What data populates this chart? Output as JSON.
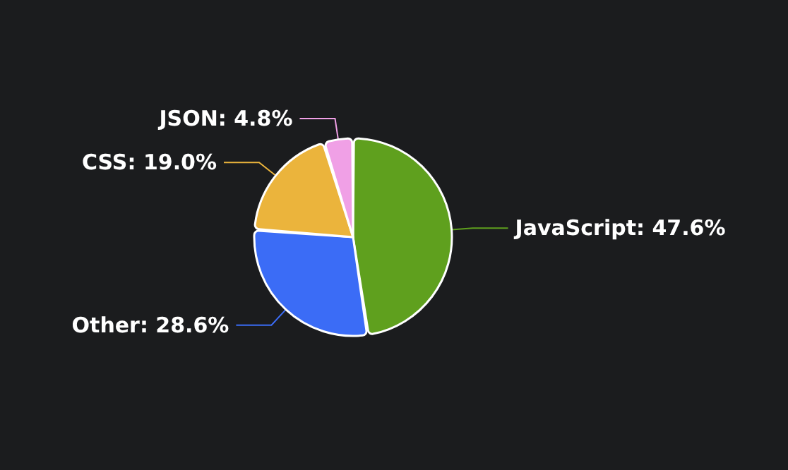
{
  "chart_data": {
    "type": "pie",
    "categories": [
      "JavaScript",
      "Other",
      "CSS",
      "JSON"
    ],
    "values": [
      47.6,
      28.6,
      19.0,
      4.8
    ],
    "value_labels": [
      "47.6%",
      "28.6%",
      "19.0%",
      "4.8%"
    ],
    "colors": [
      "#5fa01e",
      "#3b6cf6",
      "#ebb43c",
      "#f0a0e6"
    ],
    "legend": false
  }
}
